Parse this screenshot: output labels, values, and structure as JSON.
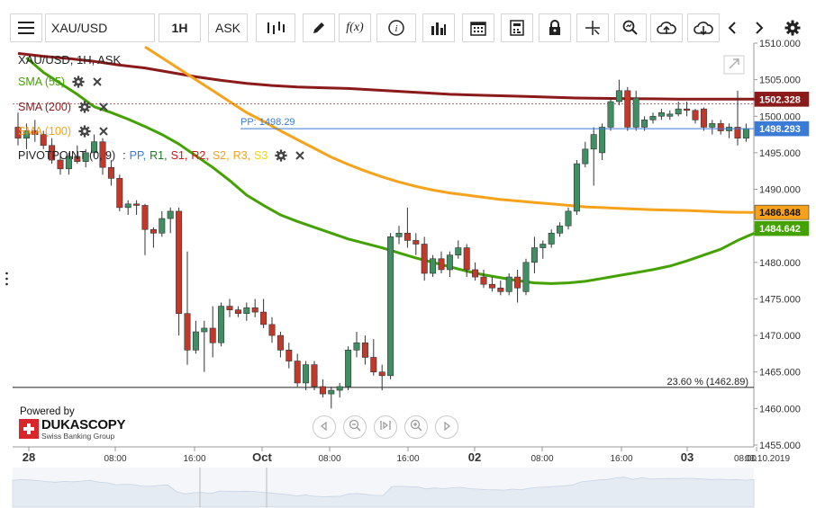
{
  "toolbar": {
    "symbol": "XAU/USD",
    "timeframe": "1H",
    "price_side": "ASK"
  },
  "chart_header": "XAU/USD, 1H, ASK",
  "indicators": [
    {
      "label": "SMA (55)",
      "color": "#43a200"
    },
    {
      "label": "SMA (200)",
      "color": "#8b1a1a"
    },
    {
      "label": "SMA (100)",
      "color": "#f7a21b"
    }
  ],
  "pivot": {
    "label": "PIVOTPOINT (0, 9)",
    "sep": ":",
    "items": [
      {
        "label": "PP,",
        "color": "#3a7bd5"
      },
      {
        "label": "R1,",
        "color": "#1b7a1b"
      },
      {
        "label": "S1,",
        "color": "#d01717"
      },
      {
        "label": "R2,",
        "color": "#d01717"
      },
      {
        "label": "S2,",
        "color": "#f7a21b"
      },
      {
        "label": "R3,",
        "color": "#f7a21b"
      },
      {
        "label": "S3",
        "color": "#f2d600"
      }
    ]
  },
  "pp_line_label": "PP: 1498.29",
  "fib_label": "23.60 % (1462.89)",
  "branding": {
    "powered_by": "Powered by",
    "brand": "DUKASCOPY",
    "tagline": "Swiss Banking Group"
  },
  "colors": {
    "bull": "#3f8f63",
    "bear": "#c0392b",
    "sma55": "#43a200",
    "sma100": "#f7a21b",
    "sma200": "#8b1a1a",
    "pp": "#3a7bd5"
  },
  "chart_data": {
    "type": "candlestick",
    "ylim": [
      1455,
      1510
    ],
    "y_ticks": [
      "1455.000",
      "1460.000",
      "1465.000",
      "1470.000",
      "1475.000",
      "1480.000",
      "1485.000",
      "1490.000",
      "1495.000",
      "1500.000",
      "1505.000",
      "1510.000"
    ],
    "x_ticks": [
      "28",
      "08:00",
      "16:00",
      "Oct",
      "08:00",
      "16:00",
      "02",
      "08:00",
      "16:00",
      "03",
      "08:00"
    ],
    "x_tick_bold": [
      true,
      false,
      false,
      true,
      false,
      false,
      true,
      false,
      false,
      true,
      false
    ],
    "date_label": "03.10.2019",
    "price_tags": [
      {
        "value": 1502.328,
        "label": "1502.328",
        "color": "#8b1a1a"
      },
      {
        "value": 1498.293,
        "label": "1498.293",
        "color": "#3a7bd5"
      },
      {
        "value": 1486.848,
        "label": "1486.848",
        "color": "#f7a21b"
      },
      {
        "value": 1484.642,
        "label": "1484.642",
        "color": "#43a200"
      }
    ],
    "pp_value": 1498.29,
    "fib_value": 1462.89,
    "candles": [
      [
        1498.5,
        1500.5,
        1496.0,
        1497.0
      ],
      [
        1497.0,
        1499.0,
        1495.5,
        1498.0
      ],
      [
        1498.0,
        1499.5,
        1496.5,
        1497.5
      ],
      [
        1497.5,
        1498.0,
        1495.5,
        1496.0
      ],
      [
        1496.0,
        1497.0,
        1493.5,
        1494.0
      ],
      [
        1494.0,
        1495.0,
        1492.0,
        1492.8
      ],
      [
        1492.8,
        1495.0,
        1492.0,
        1494.5
      ],
      [
        1494.5,
        1496.0,
        1493.5,
        1493.8
      ],
      [
        1493.8,
        1495.5,
        1493.0,
        1495.0
      ],
      [
        1495.0,
        1497.5,
        1494.5,
        1496.5
      ],
      [
        1496.5,
        1497.0,
        1492.0,
        1493.0
      ],
      [
        1493.0,
        1494.0,
        1490.5,
        1491.5
      ],
      [
        1491.5,
        1492.0,
        1487.0,
        1487.5
      ],
      [
        1487.5,
        1488.5,
        1486.5,
        1488.0
      ],
      [
        1488.0,
        1488.5,
        1486.5,
        1487.8
      ],
      [
        1487.8,
        1488.0,
        1481.0,
        1484.5
      ],
      [
        1484.5,
        1484.8,
        1482.0,
        1484.0
      ],
      [
        1484.0,
        1487.0,
        1483.5,
        1486.0
      ],
      [
        1486.0,
        1487.5,
        1484.0,
        1487.0
      ],
      [
        1487.0,
        1487.5,
        1470.0,
        1473.0
      ],
      [
        1473.0,
        1481.5,
        1466.0,
        1468.0
      ],
      [
        1468.0,
        1472.0,
        1467.5,
        1470.5
      ],
      [
        1470.5,
        1472.0,
        1465.0,
        1471.0
      ],
      [
        1471.0,
        1474.0,
        1467.0,
        1469.0
      ],
      [
        1469.0,
        1474.5,
        1468.5,
        1474.0
      ],
      [
        1474.0,
        1475.0,
        1472.5,
        1473.5
      ],
      [
        1473.5,
        1474.0,
        1472.5,
        1473.0
      ],
      [
        1473.0,
        1474.5,
        1472.0,
        1473.8
      ],
      [
        1473.8,
        1475.0,
        1472.5,
        1473.2
      ],
      [
        1473.2,
        1475.0,
        1471.0,
        1471.5
      ],
      [
        1471.5,
        1472.5,
        1469.0,
        1470.0
      ],
      [
        1470.0,
        1470.5,
        1467.0,
        1468.0
      ],
      [
        1468.0,
        1469.0,
        1465.5,
        1466.5
      ],
      [
        1466.5,
        1467.5,
        1463.0,
        1463.5
      ],
      [
        1463.5,
        1466.5,
        1462.5,
        1466.0
      ],
      [
        1466.0,
        1466.5,
        1462.5,
        1463.0
      ],
      [
        1463.0,
        1464.0,
        1461.5,
        1462.0
      ],
      [
        1462.0,
        1463.0,
        1460.0,
        1462.5
      ],
      [
        1462.5,
        1463.5,
        1461.5,
        1463.0
      ],
      [
        1463.0,
        1468.5,
        1462.5,
        1468.0
      ],
      [
        1468.0,
        1470.5,
        1467.0,
        1469.0
      ],
      [
        1469.0,
        1470.0,
        1466.0,
        1467.0
      ],
      [
        1467.0,
        1469.5,
        1464.5,
        1465.0
      ],
      [
        1465.0,
        1466.0,
        1462.5,
        1464.5
      ],
      [
        1464.5,
        1484.0,
        1464.0,
        1483.5
      ],
      [
        1483.5,
        1485.0,
        1482.5,
        1484.0
      ],
      [
        1484.0,
        1487.5,
        1482.0,
        1483.0
      ],
      [
        1483.0,
        1484.0,
        1481.0,
        1482.5
      ],
      [
        1482.5,
        1483.5,
        1477.5,
        1478.5
      ],
      [
        1478.5,
        1481.0,
        1478.0,
        1480.5
      ],
      [
        1480.5,
        1481.5,
        1478.5,
        1479.0
      ],
      [
        1479.0,
        1481.5,
        1478.0,
        1481.0
      ],
      [
        1481.0,
        1483.0,
        1480.5,
        1482.0
      ],
      [
        1482.0,
        1482.5,
        1478.0,
        1479.0
      ],
      [
        1479.0,
        1480.0,
        1477.5,
        1478.0
      ],
      [
        1478.0,
        1479.0,
        1476.5,
        1477.0
      ],
      [
        1477.0,
        1478.0,
        1476.0,
        1476.5
      ],
      [
        1476.5,
        1477.5,
        1475.5,
        1476.0
      ],
      [
        1476.0,
        1478.5,
        1475.5,
        1478.0
      ],
      [
        1478.0,
        1479.0,
        1474.5,
        1476.5
      ],
      [
        1476.0,
        1480.5,
        1475.5,
        1480.0
      ],
      [
        1480.0,
        1483.5,
        1478.5,
        1482.0
      ],
      [
        1482.0,
        1483.0,
        1480.5,
        1482.5
      ],
      [
        1482.5,
        1484.5,
        1482.0,
        1484.0
      ],
      [
        1484.0,
        1485.5,
        1483.5,
        1485.0
      ],
      [
        1485.0,
        1487.5,
        1484.5,
        1487.0
      ],
      [
        1487.0,
        1494.0,
        1486.5,
        1493.5
      ],
      [
        1493.5,
        1496.5,
        1493.0,
        1495.5
      ],
      [
        1495.5,
        1498.5,
        1490.5,
        1497.5
      ],
      [
        1495.0,
        1499.0,
        1494.0,
        1498.5
      ],
      [
        1498.5,
        1502.5,
        1498.0,
        1502.0
      ],
      [
        1502.0,
        1505.0,
        1501.5,
        1503.5
      ],
      [
        1503.5,
        1504.0,
        1498.0,
        1498.5
      ],
      [
        1498.5,
        1503.5,
        1498.0,
        1502.5
      ],
      [
        1498.5,
        1500.0,
        1498.0,
        1499.5
      ],
      [
        1499.5,
        1500.5,
        1499.0,
        1500.0
      ],
      [
        1500.0,
        1501.0,
        1499.5,
        1500.5
      ],
      [
        1500.0,
        1500.8,
        1499.5,
        1500.3
      ],
      [
        1500.3,
        1502.0,
        1500.0,
        1501.0
      ],
      [
        1501.0,
        1502.0,
        1500.0,
        1500.8
      ],
      [
        1500.8,
        1501.0,
        1499.0,
        1499.5
      ],
      [
        1501.0,
        1501.2,
        1498.0,
        1498.5
      ],
      [
        1498.5,
        1499.5,
        1497.5,
        1499.0
      ],
      [
        1499.0,
        1499.5,
        1497.5,
        1498.0
      ],
      [
        1498.0,
        1499.0,
        1497.0,
        1498.5
      ],
      [
        1498.5,
        1503.5,
        1496.0,
        1497.0
      ],
      [
        1497.0,
        1499.0,
        1496.5,
        1498.3
      ]
    ],
    "sma55": [
      [
        1,
        1508
      ],
      [
        3,
        1506
      ],
      [
        5,
        1504.5
      ],
      [
        7,
        1503
      ],
      [
        9,
        1501.3
      ],
      [
        11,
        1500.5
      ],
      [
        13,
        1499.6
      ],
      [
        15,
        1498.6
      ],
      [
        17,
        1497.5
      ],
      [
        19,
        1496.2
      ],
      [
        21,
        1494.6
      ],
      [
        23,
        1493
      ],
      [
        25,
        1491.2
      ],
      [
        27,
        1489.2
      ],
      [
        29,
        1487.8
      ],
      [
        31,
        1486.5
      ],
      [
        33,
        1485.6
      ],
      [
        35,
        1484.8
      ],
      [
        37,
        1484
      ],
      [
        39,
        1483.2
      ],
      [
        41,
        1482.6
      ],
      [
        43,
        1482
      ],
      [
        45,
        1481.3
      ],
      [
        47,
        1480.6
      ],
      [
        49,
        1480
      ],
      [
        51,
        1479.4
      ],
      [
        53,
        1478.8
      ],
      [
        55,
        1478.3
      ],
      [
        57,
        1477.9
      ],
      [
        59,
        1477.5
      ],
      [
        61,
        1477.2
      ],
      [
        63,
        1477.1
      ],
      [
        65,
        1477.2
      ],
      [
        67,
        1477.4
      ],
      [
        69,
        1477.8
      ],
      [
        71,
        1478.2
      ],
      [
        73,
        1478.6
      ],
      [
        75,
        1479
      ],
      [
        77,
        1479.5
      ],
      [
        79,
        1480.2
      ],
      [
        81,
        1481
      ],
      [
        83,
        1481.8
      ],
      [
        85,
        1483
      ],
      [
        87,
        1484
      ]
    ],
    "sma100": [
      [
        15,
        1509.5
      ],
      [
        17,
        1508
      ],
      [
        19,
        1506.5
      ],
      [
        21,
        1505
      ],
      [
        23,
        1503.5
      ],
      [
        25,
        1502
      ],
      [
        27,
        1500.5
      ],
      [
        29,
        1499.3
      ],
      [
        31,
        1498
      ],
      [
        33,
        1496.8
      ],
      [
        35,
        1495.6
      ],
      [
        37,
        1494.4
      ],
      [
        39,
        1493.4
      ],
      [
        41,
        1492.5
      ],
      [
        43,
        1491.7
      ],
      [
        45,
        1491
      ],
      [
        47,
        1490.4
      ],
      [
        49,
        1489.9
      ],
      [
        51,
        1489.5
      ],
      [
        53,
        1489.2
      ],
      [
        55,
        1488.9
      ],
      [
        57,
        1488.6
      ],
      [
        59,
        1488.4
      ],
      [
        61,
        1488.2
      ],
      [
        63,
        1488
      ],
      [
        65,
        1487.8
      ],
      [
        67,
        1487.6
      ],
      [
        69,
        1487.5
      ],
      [
        71,
        1487.4
      ],
      [
        73,
        1487.3
      ],
      [
        75,
        1487.2
      ],
      [
        77,
        1487.15
      ],
      [
        79,
        1487.1
      ],
      [
        81,
        1487.0
      ],
      [
        83,
        1486.9
      ],
      [
        85,
        1486.85
      ],
      [
        87,
        1486.84
      ]
    ],
    "sma200": [
      [
        0,
        1508.6
      ],
      [
        3,
        1508.2
      ],
      [
        6,
        1507.9
      ],
      [
        9,
        1507.5
      ],
      [
        12,
        1507
      ],
      [
        15,
        1506.6
      ],
      [
        18,
        1506
      ],
      [
        21,
        1505.4
      ],
      [
        24,
        1504.9
      ],
      [
        27,
        1504.5
      ],
      [
        30,
        1504.2
      ],
      [
        33,
        1504
      ],
      [
        36,
        1503.9
      ],
      [
        39,
        1503.8
      ],
      [
        42,
        1503.6
      ],
      [
        45,
        1503.4
      ],
      [
        48,
        1503.2
      ],
      [
        51,
        1503
      ],
      [
        54,
        1502.9
      ],
      [
        57,
        1502.8
      ],
      [
        60,
        1502.7
      ],
      [
        63,
        1502.6
      ],
      [
        66,
        1502.5
      ],
      [
        69,
        1502.45
      ],
      [
        72,
        1502.4
      ],
      [
        75,
        1502.38
      ],
      [
        78,
        1502.35
      ],
      [
        81,
        1502.34
      ],
      [
        84,
        1502.33
      ],
      [
        87,
        1502.33
      ]
    ]
  }
}
